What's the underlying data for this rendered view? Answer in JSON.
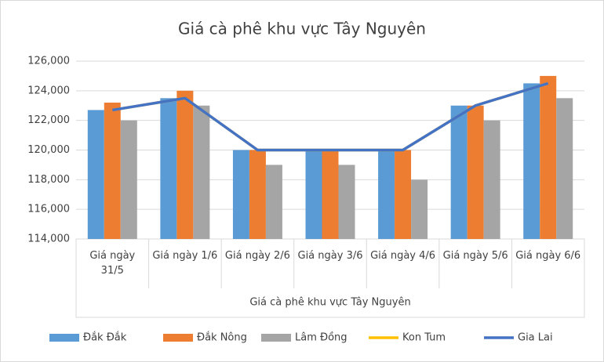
{
  "chart_data": {
    "type": "bar",
    "title": "Giá cà phê khu vực Tây Nguyên",
    "x_label": "Giá cà phê khu vực Tây Nguyên",
    "categories": [
      "Giá ngày 31/5",
      "Giá ngày 1/6",
      "Giá ngày 2/6",
      "Giá ngày 3/6",
      "Giá ngày 4/6",
      "Giá ngày 5/6",
      "Giá ngày 6/6"
    ],
    "series": [
      {
        "name": "Đắk Đắk",
        "type": "bar",
        "color": "#5b9bd5",
        "values": [
          122700,
          123500,
          120000,
          120000,
          120000,
          123000,
          124500
        ]
      },
      {
        "name": "Đắk Nông",
        "type": "bar",
        "color": "#ed7d31",
        "values": [
          123200,
          124000,
          120000,
          120000,
          120000,
          123000,
          125000
        ]
      },
      {
        "name": "Lâm Đồng",
        "type": "bar",
        "color": "#a5a5a5",
        "values": [
          122000,
          123000,
          119000,
          119000,
          118000,
          122000,
          123500
        ]
      },
      {
        "name": "Kon Tum",
        "type": "line",
        "color": "#ffc000",
        "values": [
          122700,
          123500,
          120000,
          120000,
          120000,
          123000,
          124500
        ]
      },
      {
        "name": "Gia Lai",
        "type": "line",
        "color": "#4472c4",
        "values": [
          122700,
          123500,
          120000,
          120000,
          120000,
          123000,
          124500
        ]
      }
    ],
    "ylim": [
      114000,
      126000
    ],
    "yticks": [
      {
        "value": 114000,
        "label": "114,000"
      },
      {
        "value": 116000,
        "label": "116,000"
      },
      {
        "value": 118000,
        "label": "118,000"
      },
      {
        "value": 120000,
        "label": "120,000"
      },
      {
        "value": 122000,
        "label": "122,000"
      },
      {
        "value": 124000,
        "label": "124,000"
      },
      {
        "value": 126000,
        "label": "126,000"
      }
    ],
    "grid": true
  }
}
